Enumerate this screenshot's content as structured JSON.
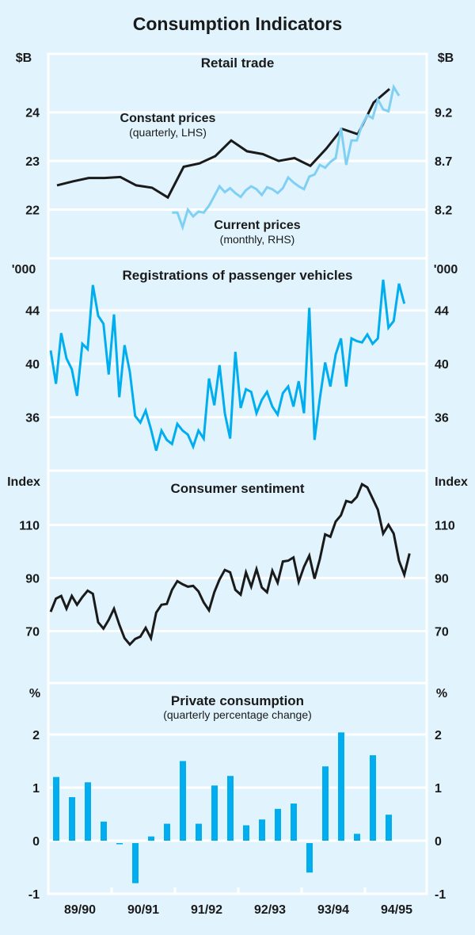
{
  "title": "Consumption Indicators",
  "colors": {
    "background": "#e1f3fd",
    "grid": "#ffffff",
    "dark_line": "#1a1a1a",
    "light_line": "#7fd0f3",
    "blue": "#00aeef"
  },
  "chart_data": [
    {
      "type": "line",
      "title": "Retail trade",
      "left_unit": "$B",
      "right_unit": "$B",
      "left_ticks": [
        "24",
        "23",
        "22"
      ],
      "left_tick_values": [
        24,
        23,
        22
      ],
      "right_ticks": [
        "9.2",
        "8.7",
        "8.2"
      ],
      "left_ylim": [
        21.0,
        25.2
      ],
      "right_ylim": [
        7.7,
        9.8
      ],
      "grid": true,
      "series": [
        {
          "name": "Constant prices",
          "note": "(quarterly, LHS)",
          "axis": "left",
          "frequency": "quarterly",
          "start_quarter_index": 0,
          "values": [
            22.5,
            22.58,
            22.65,
            22.65,
            22.67,
            22.5,
            22.45,
            22.25,
            22.88,
            22.95,
            23.1,
            23.42,
            23.2,
            23.14,
            23.0,
            23.06,
            22.9,
            23.25,
            23.66,
            23.55,
            24.2,
            24.48
          ]
        },
        {
          "name": "Current prices",
          "note": "(monthly, RHS)",
          "axis": "right",
          "frequency": "monthly",
          "start_month_index": 23,
          "values": [
            8.17,
            8.17,
            8.02,
            8.2,
            8.13,
            8.18,
            8.17,
            8.24,
            8.34,
            8.44,
            8.38,
            8.42,
            8.37,
            8.33,
            8.4,
            8.44,
            8.41,
            8.35,
            8.43,
            8.41,
            8.37,
            8.42,
            8.53,
            8.48,
            8.44,
            8.41,
            8.54,
            8.56,
            8.66,
            8.63,
            8.69,
            8.73,
            9.04,
            8.66,
            8.91,
            8.91,
            9.07,
            9.17,
            9.14,
            9.33,
            9.23,
            9.21,
            9.46,
            9.37
          ]
        }
      ]
    },
    {
      "type": "line",
      "title": "Registrations of passenger vehicles",
      "left_unit": "'000",
      "right_unit": "'000",
      "left_ticks": [
        "44",
        "40",
        "36"
      ],
      "left_tick_values": [
        44,
        40,
        36
      ],
      "right_ticks": [
        "44",
        "40",
        "36"
      ],
      "left_ylim": [
        32.0,
        47.9
      ],
      "grid": true,
      "series": [
        {
          "name": "Registrations",
          "axis": "left",
          "frequency": "monthly",
          "start_month_index": 0,
          "values": [
            41.0,
            38.5,
            42.3,
            40.4,
            39.6,
            37.6,
            41.5,
            41.1,
            45.9,
            43.6,
            43.0,
            39.2,
            43.7,
            37.5,
            41.4,
            39.4,
            36.1,
            35.6,
            36.5,
            35.1,
            33.5,
            35.0,
            34.3,
            34.0,
            35.5,
            35.0,
            34.7,
            33.8,
            35.0,
            34.4,
            38.9,
            36.9,
            39.9,
            36.3,
            34.4,
            40.9,
            36.7,
            38.1,
            37.9,
            36.3,
            37.3,
            37.9,
            36.8,
            36.2,
            37.8,
            38.3,
            36.8,
            38.7,
            36.3,
            44.2,
            34.3,
            37.4,
            40.1,
            38.3,
            40.7,
            41.9,
            38.3,
            41.9,
            41.7,
            41.6,
            42.2,
            41.5,
            41.9,
            46.3,
            42.7,
            43.2,
            46.0,
            44.5
          ]
        }
      ]
    },
    {
      "type": "line",
      "title": "Consumer sentiment",
      "left_unit": "Index",
      "right_unit": "Index",
      "left_ticks": [
        "110",
        "90",
        "70"
      ],
      "left_tick_values": [
        110,
        90,
        70
      ],
      "right_ticks": [
        "110",
        "90",
        "70"
      ],
      "left_ylim": [
        50.4,
        130.4
      ],
      "grid": true,
      "series": [
        {
          "name": "Consumer sentiment",
          "axis": "left",
          "frequency": "monthly",
          "start_month_index": 0,
          "values": [
            77.2,
            82.2,
            83.2,
            78.4,
            83.2,
            79.9,
            82.8,
            85.2,
            84.0,
            73.3,
            70.9,
            74.2,
            78.4,
            72.4,
            67.3,
            64.9,
            67.0,
            67.9,
            71.2,
            67.3,
            76.9,
            79.9,
            80.2,
            85.5,
            88.8,
            87.6,
            86.7,
            87.0,
            84.9,
            80.8,
            77.8,
            84.6,
            89.4,
            93.0,
            92.1,
            85.5,
            83.7,
            92.1,
            86.7,
            93.3,
            86.4,
            84.6,
            92.7,
            88.2,
            96.2,
            96.5,
            97.7,
            88.5,
            94.2,
            98.4,
            89.7,
            97.1,
            106.4,
            105.5,
            111.2,
            113.6,
            119.0,
            118.4,
            120.5,
            125.3,
            124.1,
            119.9,
            115.7,
            106.7,
            110.0,
            106.7,
            96.5,
            91.2,
            99.2
          ]
        }
      ]
    },
    {
      "type": "bar",
      "title": "Private consumption",
      "subtitle": "(quarterly percentage change)",
      "left_unit": "%",
      "right_unit": "%",
      "left_ticks": [
        "2",
        "1",
        "0",
        "-1"
      ],
      "left_tick_values": [
        2,
        1,
        0,
        -1
      ],
      "right_ticks": [
        "2",
        "1",
        "0",
        "-1"
      ],
      "left_ylim": [
        -1.0,
        2.97
      ],
      "grid": true,
      "series": [
        {
          "name": "Private consumption",
          "frequency": "quarterly",
          "values": [
            1.2,
            0.82,
            1.1,
            0.36,
            -0.03,
            -0.8,
            0.08,
            0.32,
            1.5,
            0.32,
            1.04,
            1.22,
            0.29,
            0.4,
            0.6,
            0.7,
            -0.6,
            1.4,
            2.04,
            0.13,
            1.61,
            0.49
          ]
        }
      ]
    }
  ],
  "xaxis": {
    "categories": [
      "89/90",
      "90/91",
      "91/92",
      "92/93",
      "93/94",
      "94/95"
    ]
  }
}
